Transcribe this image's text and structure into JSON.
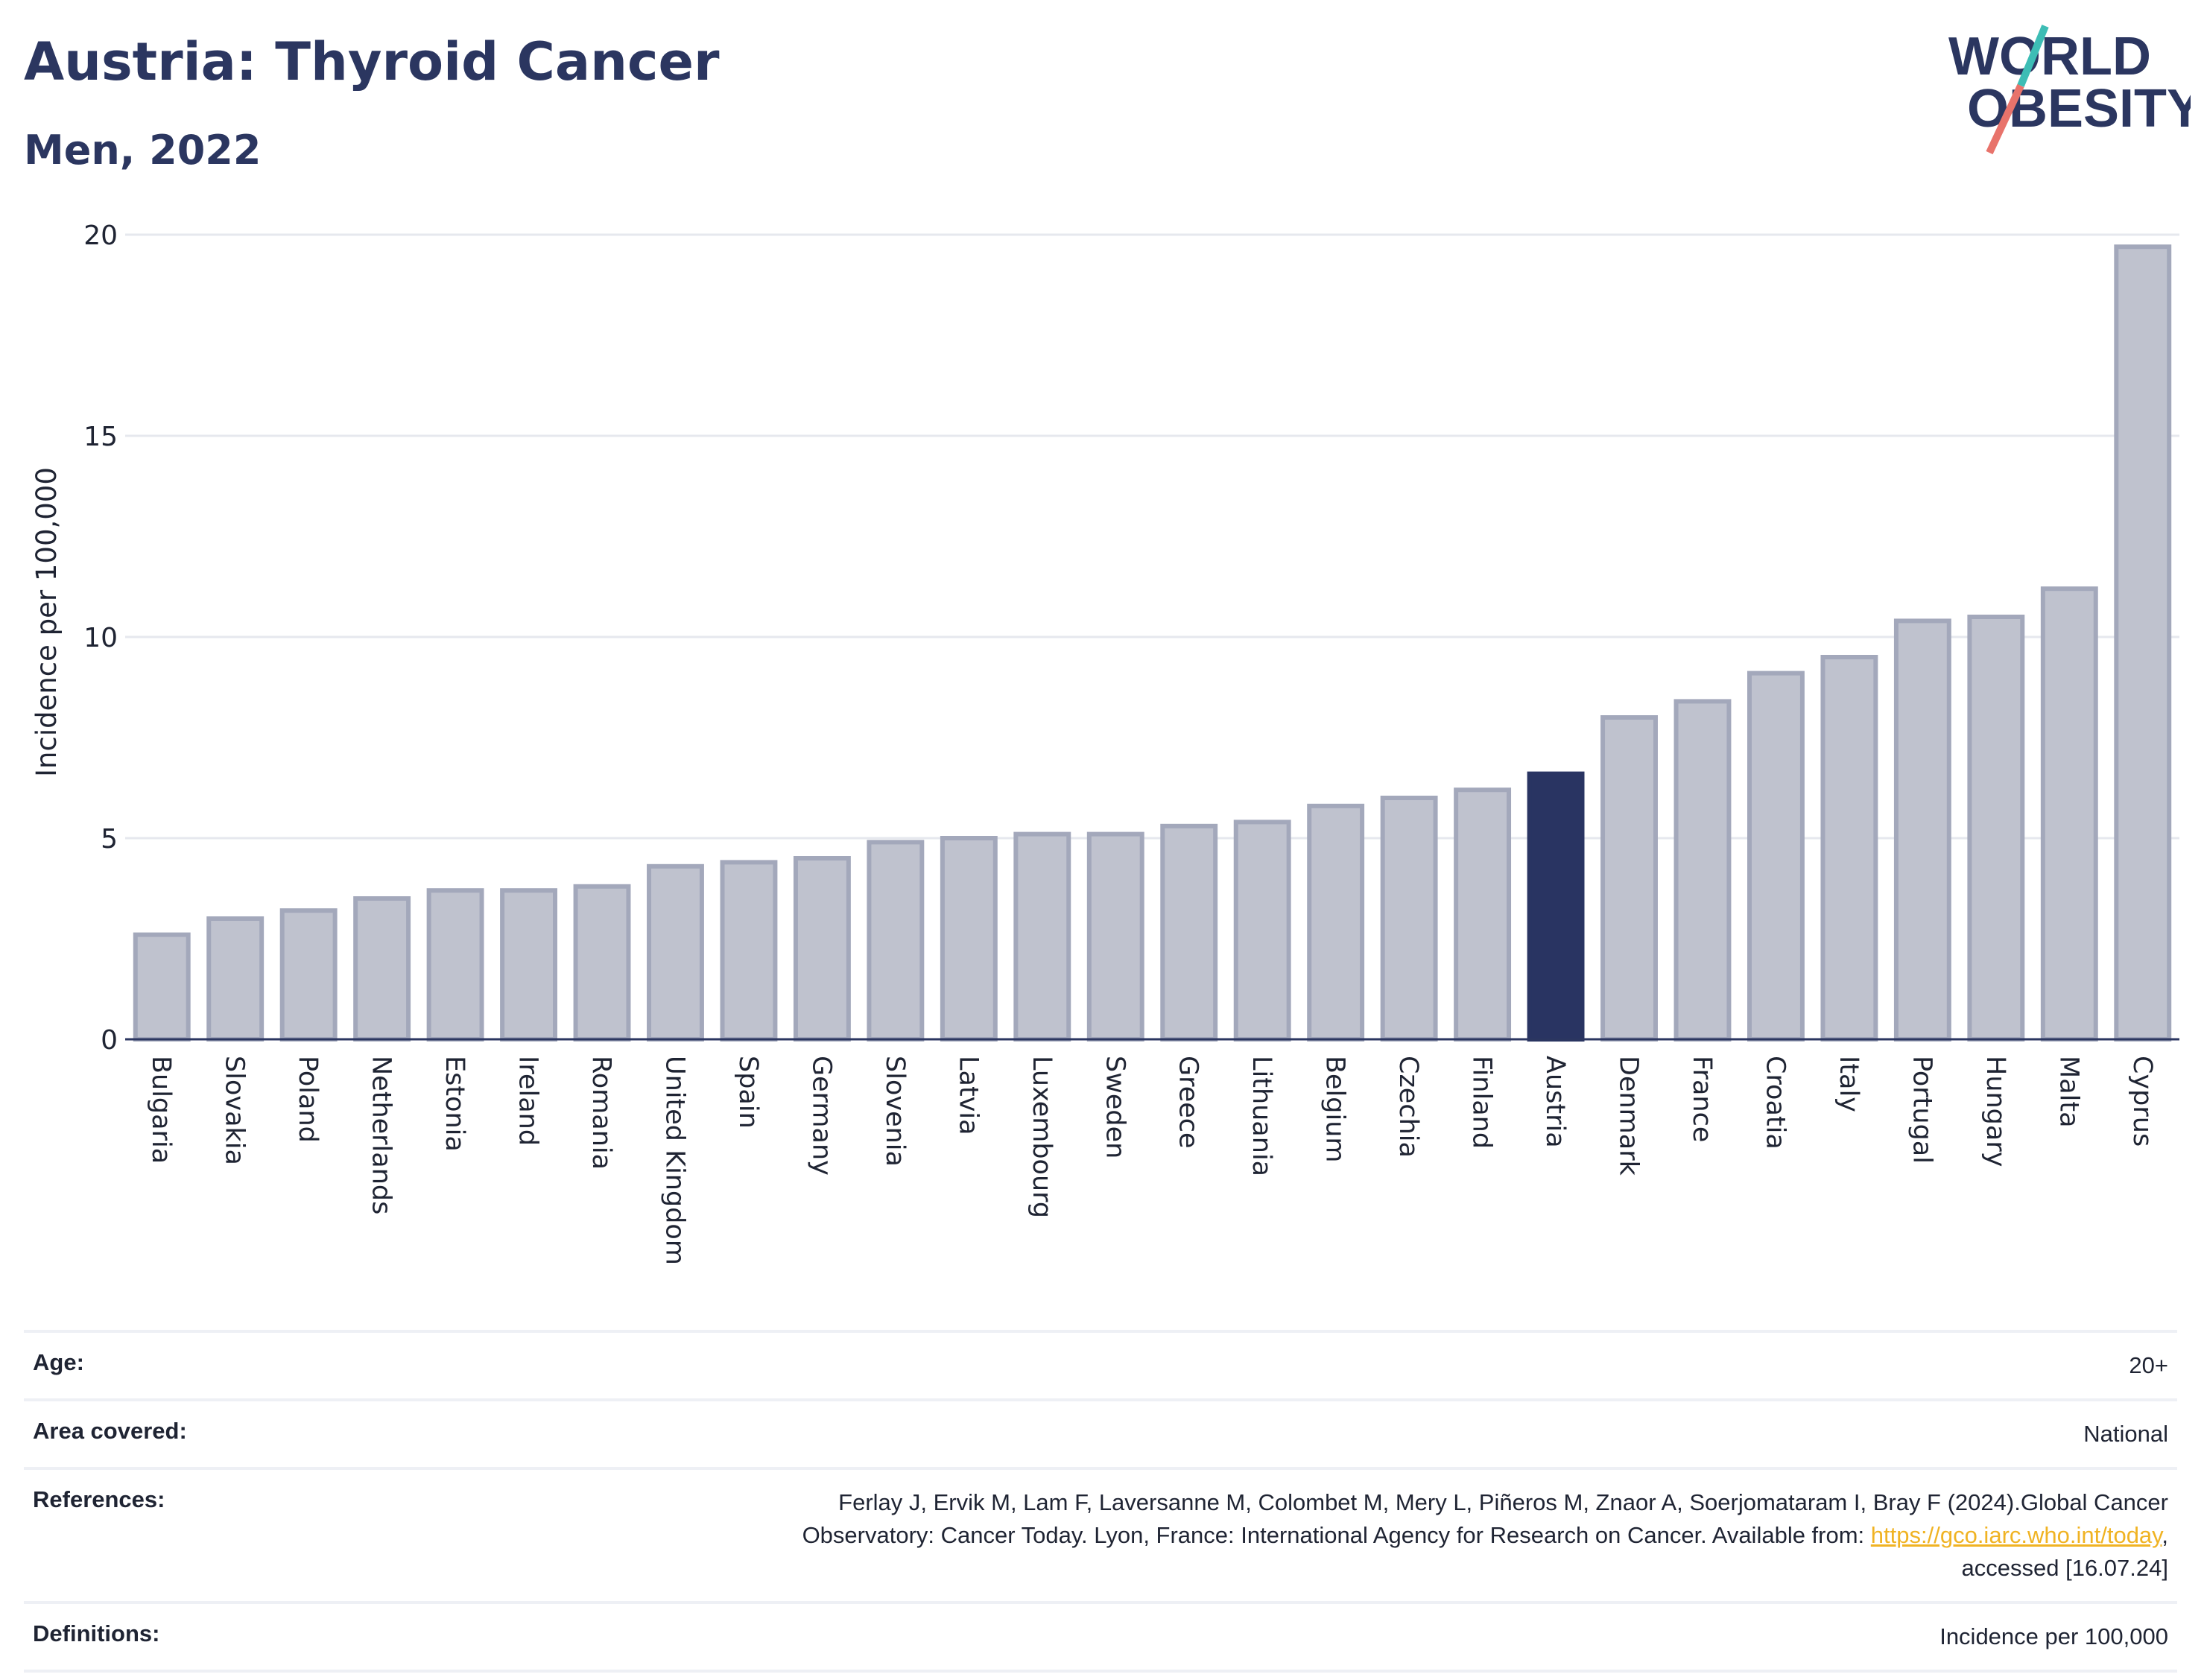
{
  "header": {
    "title": "Austria: Thyroid Cancer",
    "subtitle": "Men, 2022"
  },
  "logo": {
    "line1": "WORLD",
    "line2": "OBESITY"
  },
  "chart_data": {
    "type": "bar",
    "ylabel": "Incidence per 100,000",
    "ylim": [
      0,
      20
    ],
    "yticks": [
      0,
      5,
      10,
      15,
      20
    ],
    "categories": [
      "Bulgaria",
      "Slovakia",
      "Poland",
      "Netherlands",
      "Estonia",
      "Ireland",
      "Romania",
      "United Kingdom",
      "Spain",
      "Germany",
      "Slovenia",
      "Latvia",
      "Luxembourg",
      "Sweden",
      "Greece",
      "Lithuania",
      "Belgium",
      "Czechia",
      "Finland",
      "Austria",
      "Denmark",
      "France",
      "Croatia",
      "Italy",
      "Portugal",
      "Hungary",
      "Malta",
      "Cyprus"
    ],
    "values": [
      2.6,
      3.0,
      3.2,
      3.5,
      3.7,
      3.7,
      3.8,
      4.3,
      4.4,
      4.5,
      4.9,
      5.0,
      5.1,
      5.1,
      5.3,
      5.4,
      5.8,
      6.0,
      6.2,
      6.6,
      8.0,
      8.4,
      9.1,
      9.5,
      10.4,
      10.5,
      11.2,
      19.7
    ],
    "highlight": "Austria",
    "colors": {
      "bar": "#bfc2ce",
      "bar_border": "#a3a8bb",
      "highlight": "#293462",
      "grid": "#e6e8ee",
      "axis": "#2b3660"
    }
  },
  "meta": {
    "age": {
      "label": "Age:",
      "value": "20+"
    },
    "area": {
      "label": "Area covered:",
      "value": "National"
    },
    "references": {
      "label": "References:",
      "line1": "Ferlay J, Ervik M, Lam F, Laversanne M, Colombet M, Mery L, Piñeros M, Znaor A, Soerjomataram I, Bray F (2024).Global Cancer",
      "line2_pre": "Observatory: Cancer Today. Lyon, France: International Agency for Research on Cancer. Available from: ",
      "link": "https://gco.iarc.who.int/today",
      "line2_post": ",",
      "line3": "accessed [16.07.24]"
    },
    "definitions": {
      "label": "Definitions:",
      "value": "Incidence per 100,000"
    }
  }
}
